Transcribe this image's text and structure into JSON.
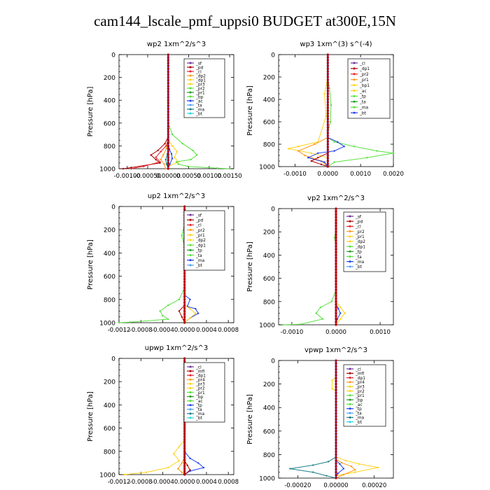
{
  "figure_title": "cam144_lscale_pmf_uppsi0  BUDGET at300E,15N",
  "colors": {
    "purple": "#7030a0",
    "dkred": "#b00000",
    "red": "#e8202a",
    "orange": "#ff9a1c",
    "yellow": "#ffd21c",
    "green": "#58e040",
    "dkgreen": "#20a020",
    "blue": "#2040f0",
    "dkblue": "#1a2c9a",
    "teal": "#1d7f8a",
    "cyan": "#20d8e8",
    "ltblue": "#4aa0ff",
    "pink": "#ff6fa8"
  },
  "chart_data": [
    {
      "type": "line",
      "title": "wp2   1xm^2/s^3",
      "ylabel": "Pressure [hPa]",
      "ylim": [
        1000,
        0
      ],
      "yticks": [
        "0",
        "200",
        "400",
        "600",
        "800",
        "1000"
      ],
      "xlim": [
        -0.0012,
        0.0016
      ],
      "xticks": [
        -0.001,
        -0.0005,
        0,
        0.0005,
        0.001,
        0.0015
      ],
      "xtick_labels": [
        "-0.00100",
        "-0.00050",
        "0.00000",
        "0.00050",
        "0.00100",
        "0.00150"
      ],
      "legend": [
        "_sf",
        "_pd",
        "_cl",
        "_dp2",
        "_dp1",
        "_pr3",
        "_pr2",
        "_pr1",
        "_bp",
        "_ac",
        "_ta",
        "_ma",
        "_bt"
      ],
      "series": [
        {
          "name": "_pr2",
          "color": "yellow",
          "x": [
            0,
            0,
            2e-05,
            0.0001,
            0.00022,
            0.00015,
            0.00025,
            0.0,
            0
          ],
          "y": [
            0,
            700,
            760,
            800,
            850,
            900,
            940,
            980,
            1000
          ]
        },
        {
          "name": "_dp1",
          "color": "dkred",
          "x": [
            0,
            0,
            -8e-05,
            -0.00025,
            -0.00042,
            -0.0003,
            -0.0002,
            -0.0009,
            -0.0011
          ],
          "y": [
            0,
            720,
            780,
            840,
            880,
            920,
            950,
            990,
            1000
          ]
        },
        {
          "name": "_dp2",
          "color": "red",
          "x": [
            0,
            0,
            -5e-05,
            -0.00018,
            -0.0003,
            -0.0002,
            -0.0006,
            -0.0009
          ],
          "y": [
            0,
            740,
            800,
            850,
            900,
            940,
            980,
            1000
          ]
        },
        {
          "name": "_pr3",
          "color": "orange",
          "x": [
            0,
            0,
            -4e-05,
            -0.00012,
            -0.00018,
            -0.0001,
            -6e-05
          ],
          "y": [
            0,
            760,
            820,
            880,
            920,
            960,
            1000
          ]
        },
        {
          "name": "_bp",
          "color": "green",
          "x": [
            0,
            0,
            0.0001,
            0.00035,
            0.0006,
            0.0007,
            0.00055,
            0.0002,
            0.00025,
            0.00048,
            0.0012,
            0.0015
          ],
          "y": [
            0,
            600,
            700,
            780,
            840,
            880,
            920,
            940,
            960,
            980,
            995,
            1000
          ]
        },
        {
          "name": "_ac",
          "color": "blue",
          "x": [
            0,
            0,
            3e-05,
            8e-05,
            0.0001,
            4e-05,
            0.0
          ],
          "y": [
            0,
            780,
            830,
            870,
            910,
            960,
            1000
          ]
        },
        {
          "name": "_ma",
          "color": "teal",
          "x": [
            0,
            0,
            -2e-05,
            -6e-05,
            -4e-05,
            0
          ],
          "y": [
            0,
            820,
            870,
            920,
            960,
            1000
          ]
        },
        {
          "name": "_sf",
          "color": "purple",
          "x": [
            0,
            0
          ],
          "y": [
            0,
            1000
          ]
        }
      ]
    },
    {
      "type": "line",
      "title": "wp3   1xm^(3) s^(-4)",
      "ylabel": "Pressure [hPa]",
      "ylim": [
        1000,
        0
      ],
      "yticks": [
        "0",
        "200",
        "400",
        "600",
        "800",
        "1000"
      ],
      "xlim": [
        -0.0015,
        0.002
      ],
      "xticks": [
        -0.001,
        0,
        0.001,
        0.002
      ],
      "xtick_labels": [
        "-0.0010",
        "0.0000",
        "0.0010",
        "0.0020"
      ],
      "legend": [
        "_cl",
        "_dp1",
        "_pr2",
        "_pr1",
        "_bp1",
        "_ac",
        "_tp",
        "_ta",
        "_ma",
        "_bt"
      ],
      "series": [
        {
          "name": "_ac",
          "color": "green",
          "x": [
            0,
            0,
            5e-05,
            0.0001,
            8e-05,
            0,
            0,
            0.0002,
            0.0008,
            0.0015,
            0.002,
            0.0012,
            0.0002,
            0
          ],
          "y": [
            0,
            200,
            300,
            450,
            600,
            700,
            740,
            780,
            820,
            860,
            880,
            920,
            960,
            1000
          ]
        },
        {
          "name": "_pr1",
          "color": "yellow",
          "x": [
            0,
            0,
            -0.0001,
            -5e-05,
            -0.0003,
            -0.0009,
            -0.0012,
            -0.0005,
            0,
            0
          ],
          "y": [
            0,
            200,
            350,
            550,
            780,
            820,
            840,
            880,
            920,
            1000
          ]
        },
        {
          "name": "_pr2",
          "color": "orange",
          "x": [
            0,
            0,
            -0.0004,
            -0.0009,
            -0.0007,
            -0.0002,
            0
          ],
          "y": [
            0,
            740,
            800,
            860,
            900,
            950,
            1000
          ]
        },
        {
          "name": "_tp",
          "color": "blue",
          "x": [
            0,
            0,
            0.0003,
            0.0005,
            0.0002,
            -0.0003,
            -0.0006,
            -0.0001,
            0
          ],
          "y": [
            0,
            740,
            780,
            820,
            860,
            880,
            920,
            960,
            1000
          ]
        },
        {
          "name": "_dp1",
          "color": "dkred",
          "x": [
            0,
            0,
            -0.0003,
            -0.0005,
            -0.0002,
            0
          ],
          "y": [
            0,
            880,
            920,
            950,
            980,
            1000
          ]
        },
        {
          "name": "_cl",
          "color": "purple",
          "x": [
            0,
            0
          ],
          "y": [
            0,
            1000
          ]
        }
      ]
    },
    {
      "type": "line",
      "title": "up2   1xm^2/s^3",
      "ylabel": "Pressure [hPa]",
      "ylim": [
        1000,
        0
      ],
      "yticks": [
        "0",
        "200",
        "400",
        "600",
        "800",
        "1000"
      ],
      "xlim": [
        -0.0012,
        0.0009
      ],
      "xticks": [
        -0.0012,
        -0.0008,
        -0.0004,
        0,
        0.0004,
        0.0008
      ],
      "xtick_labels": [
        "-0.0012",
        "-0.0008",
        "-0.0004",
        "0.0000",
        "0.0004",
        "0.0008"
      ],
      "legend": [
        "_sf",
        "_pd",
        "_cl",
        "_pr2",
        "_pr1",
        "_dp2",
        "_dp1",
        "_tp",
        "_ta",
        "_ma",
        "_bt"
      ],
      "series": [
        {
          "name": "_pr1",
          "color": "green",
          "x": [
            0,
            0,
            -5e-05,
            0,
            0,
            -0.0001,
            -0.0003,
            -0.00045,
            -0.0004,
            -0.0003,
            -0.001,
            -0.0012
          ],
          "y": [
            0,
            150,
            250,
            350,
            700,
            800,
            850,
            900,
            940,
            970,
            995,
            1000
          ]
        },
        {
          "name": "_tp",
          "color": "blue",
          "x": [
            0,
            0,
            0.0001,
            5e-05,
            0.0002,
            0.00025,
            0.0001,
            0
          ],
          "y": [
            0,
            760,
            800,
            860,
            880,
            920,
            960,
            1000
          ]
        },
        {
          "name": "_pr2",
          "color": "yellow",
          "x": [
            0,
            0,
            0.0001,
            0.0002,
            0.0001,
            0
          ],
          "y": [
            0,
            850,
            880,
            920,
            960,
            1000
          ]
        },
        {
          "name": "_dp1",
          "color": "dkred",
          "x": [
            0,
            0,
            -0.0001,
            -5e-05,
            0
          ],
          "y": [
            0,
            850,
            900,
            950,
            1000
          ]
        },
        {
          "name": "_sf",
          "color": "purple",
          "x": [
            0,
            0
          ],
          "y": [
            0,
            1000
          ]
        },
        {
          "name": "_pd",
          "color": "red",
          "x": [
            0,
            0
          ],
          "y": [
            0,
            1000
          ]
        }
      ]
    },
    {
      "type": "line",
      "title": "vp2   1xm^2/s^3",
      "ylabel": "Pressure [hPa]",
      "ylim": [
        1000,
        0
      ],
      "yticks": [
        "0",
        "200",
        "400",
        "600",
        "800",
        "1000"
      ],
      "xlim": [
        -0.0013,
        0.0013
      ],
      "xticks": [
        -0.001,
        0,
        0.001
      ],
      "xtick_labels": [
        "-0.0010",
        "0.0000",
        "0.0010"
      ],
      "legend": [
        "_sf",
        "_pd",
        "_cl",
        "_pr2",
        "_pr1",
        "_dp2",
        "_dp1",
        "_tp",
        "_ta",
        "_ma",
        "_bt"
      ],
      "series": [
        {
          "name": "_pr1",
          "color": "green",
          "x": [
            0,
            0,
            -3e-05,
            0,
            0,
            -0.0001,
            -0.00035,
            -0.00045,
            -0.0003,
            -0.0008,
            -0.0012
          ],
          "y": [
            0,
            150,
            250,
            350,
            700,
            800,
            850,
            900,
            950,
            995,
            1000
          ]
        },
        {
          "name": "_pr2",
          "color": "yellow",
          "x": [
            0,
            0,
            0.0001,
            0.0002,
            0.0001,
            0
          ],
          "y": [
            0,
            800,
            850,
            900,
            950,
            1000
          ]
        },
        {
          "name": "_tp",
          "color": "blue",
          "x": [
            0,
            0,
            5e-05,
            0.0001,
            3e-05,
            0
          ],
          "y": [
            0,
            820,
            860,
            900,
            950,
            1000
          ]
        },
        {
          "name": "_sf",
          "color": "purple",
          "x": [
            0,
            0
          ],
          "y": [
            0,
            1000
          ]
        },
        {
          "name": "_pd",
          "color": "red",
          "x": [
            0,
            0
          ],
          "y": [
            0,
            1000
          ]
        }
      ]
    },
    {
      "type": "line",
      "title": "upwp   1xm^2/s^3",
      "ylabel": "Pressure [hPa]",
      "ylim": [
        1000,
        0
      ],
      "yticks": [
        "0",
        "200",
        "400",
        "600",
        "800",
        "1000"
      ],
      "xlim": [
        -0.0012,
        0.0009
      ],
      "xticks": [
        -0.0012,
        -0.0008,
        -0.0004,
        0,
        0.0004,
        0.0008
      ],
      "xtick_labels": [
        "-0.0012",
        "-0.0008",
        "-0.0004",
        "0.0000",
        "0.0004",
        "0.0008"
      ],
      "legend": [
        "_cl",
        "_mfl",
        "_dp1",
        "_pr4",
        "_pr3",
        "_pr2",
        "_pr1",
        "_bp",
        "_ac",
        "_tp",
        "_ta",
        "_ma",
        "_bt"
      ],
      "series": [
        {
          "name": "_pr1",
          "color": "yellow",
          "x": [
            0,
            0,
            -0.0001,
            -0.0002,
            -0.0001,
            -0.0003,
            -0.0007,
            -0.0011
          ],
          "y": [
            0,
            700,
            760,
            820,
            880,
            940,
            980,
            1000
          ]
        },
        {
          "name": "_tp",
          "color": "blue",
          "x": [
            0,
            0,
            0.0001,
            0.00025,
            0.00035,
            0.0001,
            0
          ],
          "y": [
            0,
            800,
            860,
            900,
            940,
            970,
            1000
          ]
        },
        {
          "name": "_pr2",
          "color": "orange",
          "x": [
            0,
            0,
            -5e-05,
            -0.00012,
            -5e-05,
            0
          ],
          "y": [
            0,
            850,
            900,
            950,
            980,
            1000
          ]
        },
        {
          "name": "_dp1",
          "color": "dkred",
          "x": [
            0,
            0,
            5e-05,
            0.0001,
            0
          ],
          "y": [
            0,
            880,
            920,
            960,
            1000
          ]
        },
        {
          "name": "_cl",
          "color": "purple",
          "x": [
            0,
            0
          ],
          "y": [
            0,
            1000
          ]
        },
        {
          "name": "_mfl",
          "color": "dkred",
          "x": [
            0,
            0
          ],
          "y": [
            0,
            1000
          ]
        }
      ]
    },
    {
      "type": "line",
      "title": "vpwp   1xm^2/s^3",
      "ylabel": "Pressure [hPa]",
      "ylim": [
        1000,
        0
      ],
      "yticks": [
        "0",
        "200",
        "400",
        "600",
        "800",
        "1000"
      ],
      "xlim": [
        -0.0003,
        0.0003
      ],
      "xticks": [
        -0.0002,
        0,
        0.0002
      ],
      "xtick_labels": [
        "-0.00020",
        "0.00000",
        "0.00020"
      ],
      "legend": [
        "_cl",
        "_mfl",
        "_dp1",
        "_pr4",
        "_pr3",
        "_pr2",
        "_pr1",
        "_bp",
        "_ac",
        "_tp",
        "_ta",
        "_ma",
        "_bt"
      ],
      "series": [
        {
          "name": "_pr2",
          "color": "yellow",
          "x": [
            0,
            0,
            -2e-05,
            -2e-05,
            0,
            0,
            5e-05,
            0.00012,
            0.00022,
            0.0001,
            0,
            0
          ],
          "y": [
            0,
            140,
            170,
            240,
            260,
            820,
            850,
            880,
            910,
            950,
            980,
            1000
          ]
        },
        {
          "name": "_pr1",
          "color": "orange",
          "x": [
            0,
            0,
            3e-05,
            8e-05,
            0.0001,
            4e-05,
            0
          ],
          "y": [
            0,
            840,
            870,
            900,
            930,
            970,
            1000
          ]
        },
        {
          "name": "_tp",
          "color": "teal",
          "x": [
            0,
            0,
            -4e-05,
            -0.00012,
            -0.00024,
            -0.00012,
            -5e-05,
            0
          ],
          "y": [
            0,
            820,
            860,
            890,
            920,
            950,
            980,
            1000
          ]
        },
        {
          "name": "_ac",
          "color": "blue",
          "x": [
            0,
            0,
            2e-05,
            4e-05,
            1e-05,
            0
          ],
          "y": [
            0,
            850,
            880,
            920,
            960,
            1000
          ]
        },
        {
          "name": "_cl",
          "color": "purple",
          "x": [
            0,
            0
          ],
          "y": [
            0,
            1000
          ]
        }
      ]
    }
  ]
}
